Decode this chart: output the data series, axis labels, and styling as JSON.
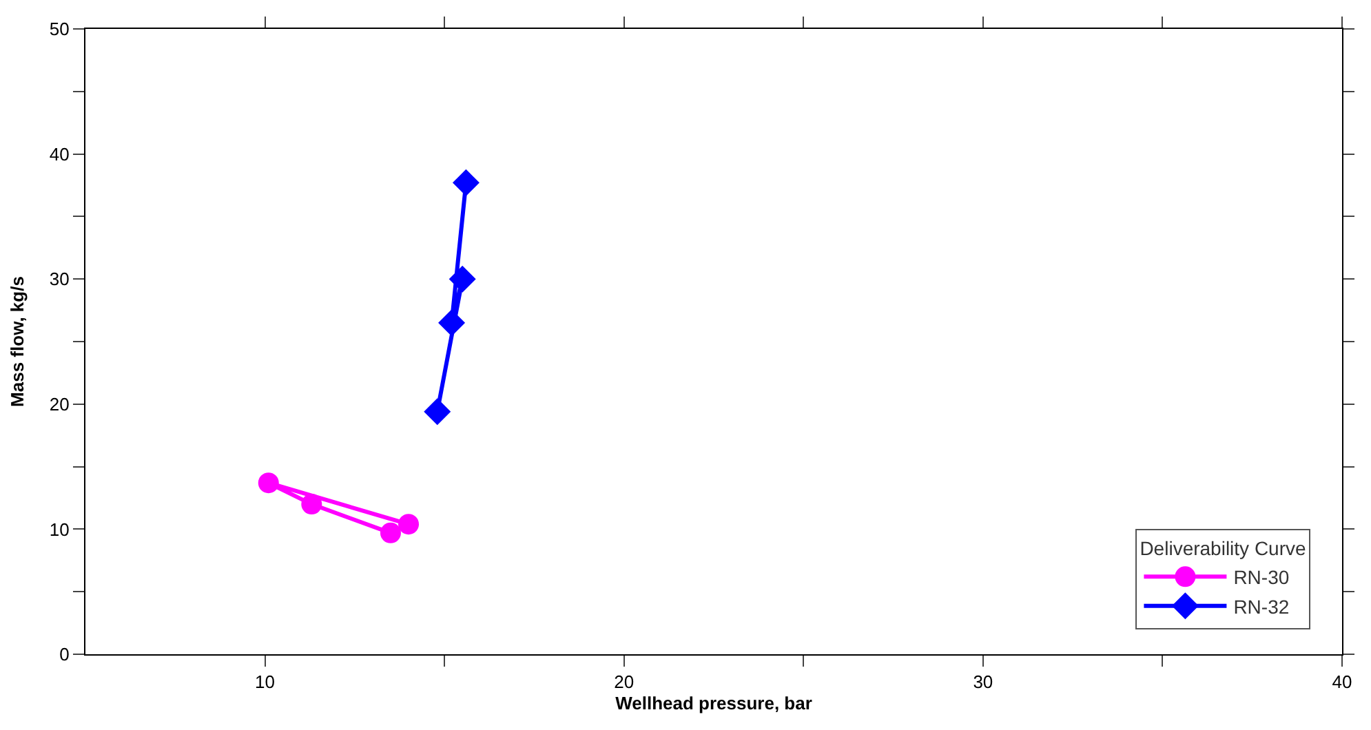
{
  "chart_data": {
    "type": "line",
    "xlabel": "Wellhead pressure, bar",
    "ylabel": "Mass flow, kg/s",
    "legend_title": "Deliverability Curve",
    "series": [
      {
        "name": "RN-30",
        "color": "#ff00ff",
        "marker": "circle",
        "x": [
          13.5,
          11.3,
          10.1,
          14.0
        ],
        "values": [
          9.7,
          12.0,
          13.7,
          10.4
        ]
      },
      {
        "name": "RN-32",
        "color": "#0000ff",
        "marker": "diamond",
        "x": [
          14.8,
          15.5,
          15.2,
          15.6
        ],
        "values": [
          19.4,
          30.0,
          26.5,
          37.7
        ]
      }
    ],
    "xlim": [
      5,
      40
    ],
    "ylim": [
      0,
      50
    ],
    "xticks": [
      10,
      {
        "value": 15,
        "label": null
      },
      20,
      {
        "value": 25,
        "label": null
      },
      30,
      {
        "value": 35,
        "label": null
      },
      40
    ],
    "yticks": [
      0,
      {
        "value": 5,
        "label": null
      },
      10,
      {
        "value": 15,
        "label": null
      },
      20,
      {
        "value": 25,
        "label": null
      },
      30,
      {
        "value": 35,
        "label": null
      },
      40,
      {
        "value": 45,
        "label": null
      },
      50
    ],
    "legend": "bottom right",
    "line_style": "solid"
  }
}
